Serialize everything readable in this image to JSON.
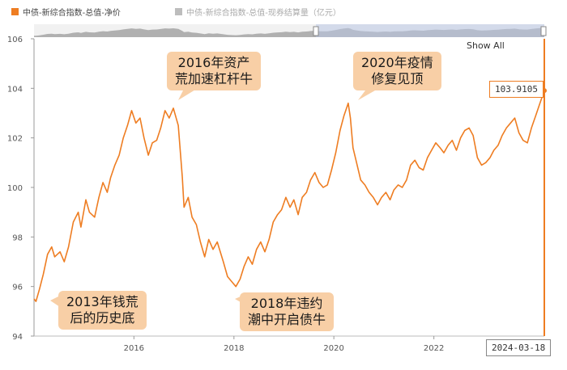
{
  "legend": [
    {
      "label": "中债-新综合指数-总值-净价",
      "color": "#ee7d22"
    },
    {
      "label": "中债-新综合指数-总值-现券结算量（亿元）",
      "color": "#bdbdbd"
    }
  ],
  "navigator": {
    "show_all": "Show All"
  },
  "tooltip": {
    "value": "103.9105",
    "date": "2024-03-18"
  },
  "annotations": [
    {
      "id": "2013",
      "line1": "2013年钱荒",
      "line2": "后的历史底"
    },
    {
      "id": "2016",
      "line1": "2016年资产",
      "line2": "荒加速杠杆牛"
    },
    {
      "id": "2018",
      "line1": "2018年违约",
      "line2": "潮中开启债牛"
    },
    {
      "id": "2020",
      "line1": "2020年疫情",
      "line2": "修复见顶"
    }
  ],
  "chart_data": {
    "type": "line",
    "title": "",
    "xlabel": "",
    "ylabel": "",
    "ylim": [
      94,
      106
    ],
    "yticks": [
      94,
      96,
      98,
      100,
      102,
      104,
      106
    ],
    "xticks": [
      "2016",
      "2018",
      "2020",
      "2022"
    ],
    "x_range": [
      "2014-01-01",
      "2024-03-18"
    ],
    "series": [
      {
        "name": "中债-新综合指数-总值-净价",
        "color": "#ee7d22",
        "points": [
          [
            "2014-01-01",
            95.5
          ],
          [
            "2014-01-15",
            95.4
          ],
          [
            "2014-02-10",
            95.9
          ],
          [
            "2014-03-10",
            96.5
          ],
          [
            "2014-04-10",
            97.3
          ],
          [
            "2014-05-10",
            97.6
          ],
          [
            "2014-06-01",
            97.2
          ],
          [
            "2014-07-10",
            97.4
          ],
          [
            "2014-08-10",
            97.0
          ],
          [
            "2014-09-10",
            97.6
          ],
          [
            "2014-10-15",
            98.6
          ],
          [
            "2014-11-20",
            99.0
          ],
          [
            "2014-12-10",
            98.4
          ],
          [
            "2015-01-15",
            99.5
          ],
          [
            "2015-02-10",
            99.0
          ],
          [
            "2015-03-20",
            98.8
          ],
          [
            "2015-04-20",
            99.6
          ],
          [
            "2015-05-20",
            100.2
          ],
          [
            "2015-06-20",
            99.8
          ],
          [
            "2015-07-15",
            100.4
          ],
          [
            "2015-08-15",
            100.9
          ],
          [
            "2015-09-15",
            101.3
          ],
          [
            "2015-10-15",
            102.0
          ],
          [
            "2015-11-15",
            102.5
          ],
          [
            "2015-12-15",
            103.1
          ],
          [
            "2016-01-15",
            102.6
          ],
          [
            "2016-02-15",
            102.8
          ],
          [
            "2016-03-15",
            102.0
          ],
          [
            "2016-04-15",
            101.3
          ],
          [
            "2016-05-15",
            101.8
          ],
          [
            "2016-06-15",
            101.9
          ],
          [
            "2016-07-15",
            102.4
          ],
          [
            "2016-08-15",
            103.1
          ],
          [
            "2016-09-15",
            102.8
          ],
          [
            "2016-10-15",
            103.2
          ],
          [
            "2016-11-20",
            102.5
          ],
          [
            "2016-12-20",
            100.4
          ],
          [
            "2017-01-01",
            99.2
          ],
          [
            "2017-02-01",
            99.6
          ],
          [
            "2017-03-01",
            98.8
          ],
          [
            "2017-04-01",
            98.5
          ],
          [
            "2017-05-01",
            97.8
          ],
          [
            "2017-06-01",
            97.2
          ],
          [
            "2017-07-01",
            97.9
          ],
          [
            "2017-08-01",
            97.5
          ],
          [
            "2017-09-01",
            97.8
          ],
          [
            "2017-10-15",
            97.0
          ],
          [
            "2017-11-15",
            96.4
          ],
          [
            "2017-12-15",
            96.2
          ],
          [
            "2018-01-15",
            96.0
          ],
          [
            "2018-02-15",
            96.3
          ],
          [
            "2018-03-15",
            96.8
          ],
          [
            "2018-04-15",
            97.2
          ],
          [
            "2018-05-15",
            96.9
          ],
          [
            "2018-06-15",
            97.5
          ],
          [
            "2018-07-15",
            97.8
          ],
          [
            "2018-08-15",
            97.4
          ],
          [
            "2018-09-15",
            97.9
          ],
          [
            "2018-10-15",
            98.6
          ],
          [
            "2018-11-15",
            98.9
          ],
          [
            "2018-12-15",
            99.1
          ],
          [
            "2019-01-15",
            99.6
          ],
          [
            "2019-02-15",
            99.2
          ],
          [
            "2019-03-15",
            99.5
          ],
          [
            "2019-04-15",
            98.9
          ],
          [
            "2019-05-15",
            99.6
          ],
          [
            "2019-06-15",
            99.8
          ],
          [
            "2019-07-15",
            100.3
          ],
          [
            "2019-08-15",
            100.6
          ],
          [
            "2019-09-15",
            100.2
          ],
          [
            "2019-10-15",
            100.0
          ],
          [
            "2019-11-15",
            100.1
          ],
          [
            "2019-12-15",
            100.7
          ],
          [
            "2020-01-15",
            101.4
          ],
          [
            "2020-02-15",
            102.3
          ],
          [
            "2020-03-15",
            102.9
          ],
          [
            "2020-04-15",
            103.4
          ],
          [
            "2020-05-01",
            102.8
          ],
          [
            "2020-05-20",
            101.6
          ],
          [
            "2020-06-15",
            101.0
          ],
          [
            "2020-07-15",
            100.3
          ],
          [
            "2020-08-15",
            100.1
          ],
          [
            "2020-09-15",
            99.8
          ],
          [
            "2020-10-15",
            99.6
          ],
          [
            "2020-11-15",
            99.3
          ],
          [
            "2020-12-15",
            99.6
          ],
          [
            "2021-01-15",
            99.8
          ],
          [
            "2021-02-15",
            99.5
          ],
          [
            "2021-03-15",
            99.9
          ],
          [
            "2021-04-15",
            100.1
          ],
          [
            "2021-05-15",
            100.0
          ],
          [
            "2021-06-15",
            100.3
          ],
          [
            "2021-07-15",
            100.9
          ],
          [
            "2021-08-15",
            101.1
          ],
          [
            "2021-09-15",
            100.8
          ],
          [
            "2021-10-15",
            100.7
          ],
          [
            "2021-11-15",
            101.2
          ],
          [
            "2021-12-15",
            101.5
          ],
          [
            "2022-01-15",
            101.8
          ],
          [
            "2022-02-15",
            101.6
          ],
          [
            "2022-03-15",
            101.4
          ],
          [
            "2022-04-15",
            101.7
          ],
          [
            "2022-05-15",
            101.9
          ],
          [
            "2022-06-15",
            101.5
          ],
          [
            "2022-07-15",
            102.0
          ],
          [
            "2022-08-15",
            102.3
          ],
          [
            "2022-09-15",
            102.4
          ],
          [
            "2022-10-15",
            102.1
          ],
          [
            "2022-11-15",
            101.2
          ],
          [
            "2022-12-15",
            100.9
          ],
          [
            "2023-01-15",
            101.0
          ],
          [
            "2023-02-15",
            101.2
          ],
          [
            "2023-03-15",
            101.5
          ],
          [
            "2023-04-15",
            101.7
          ],
          [
            "2023-05-15",
            102.1
          ],
          [
            "2023-06-15",
            102.4
          ],
          [
            "2023-07-15",
            102.6
          ],
          [
            "2023-08-15",
            102.8
          ],
          [
            "2023-09-15",
            102.2
          ],
          [
            "2023-10-15",
            101.9
          ],
          [
            "2023-11-15",
            101.8
          ],
          [
            "2023-12-15",
            102.4
          ],
          [
            "2024-01-15",
            102.9
          ],
          [
            "2024-02-15",
            103.4
          ],
          [
            "2024-03-18",
            103.9105
          ]
        ]
      }
    ]
  }
}
